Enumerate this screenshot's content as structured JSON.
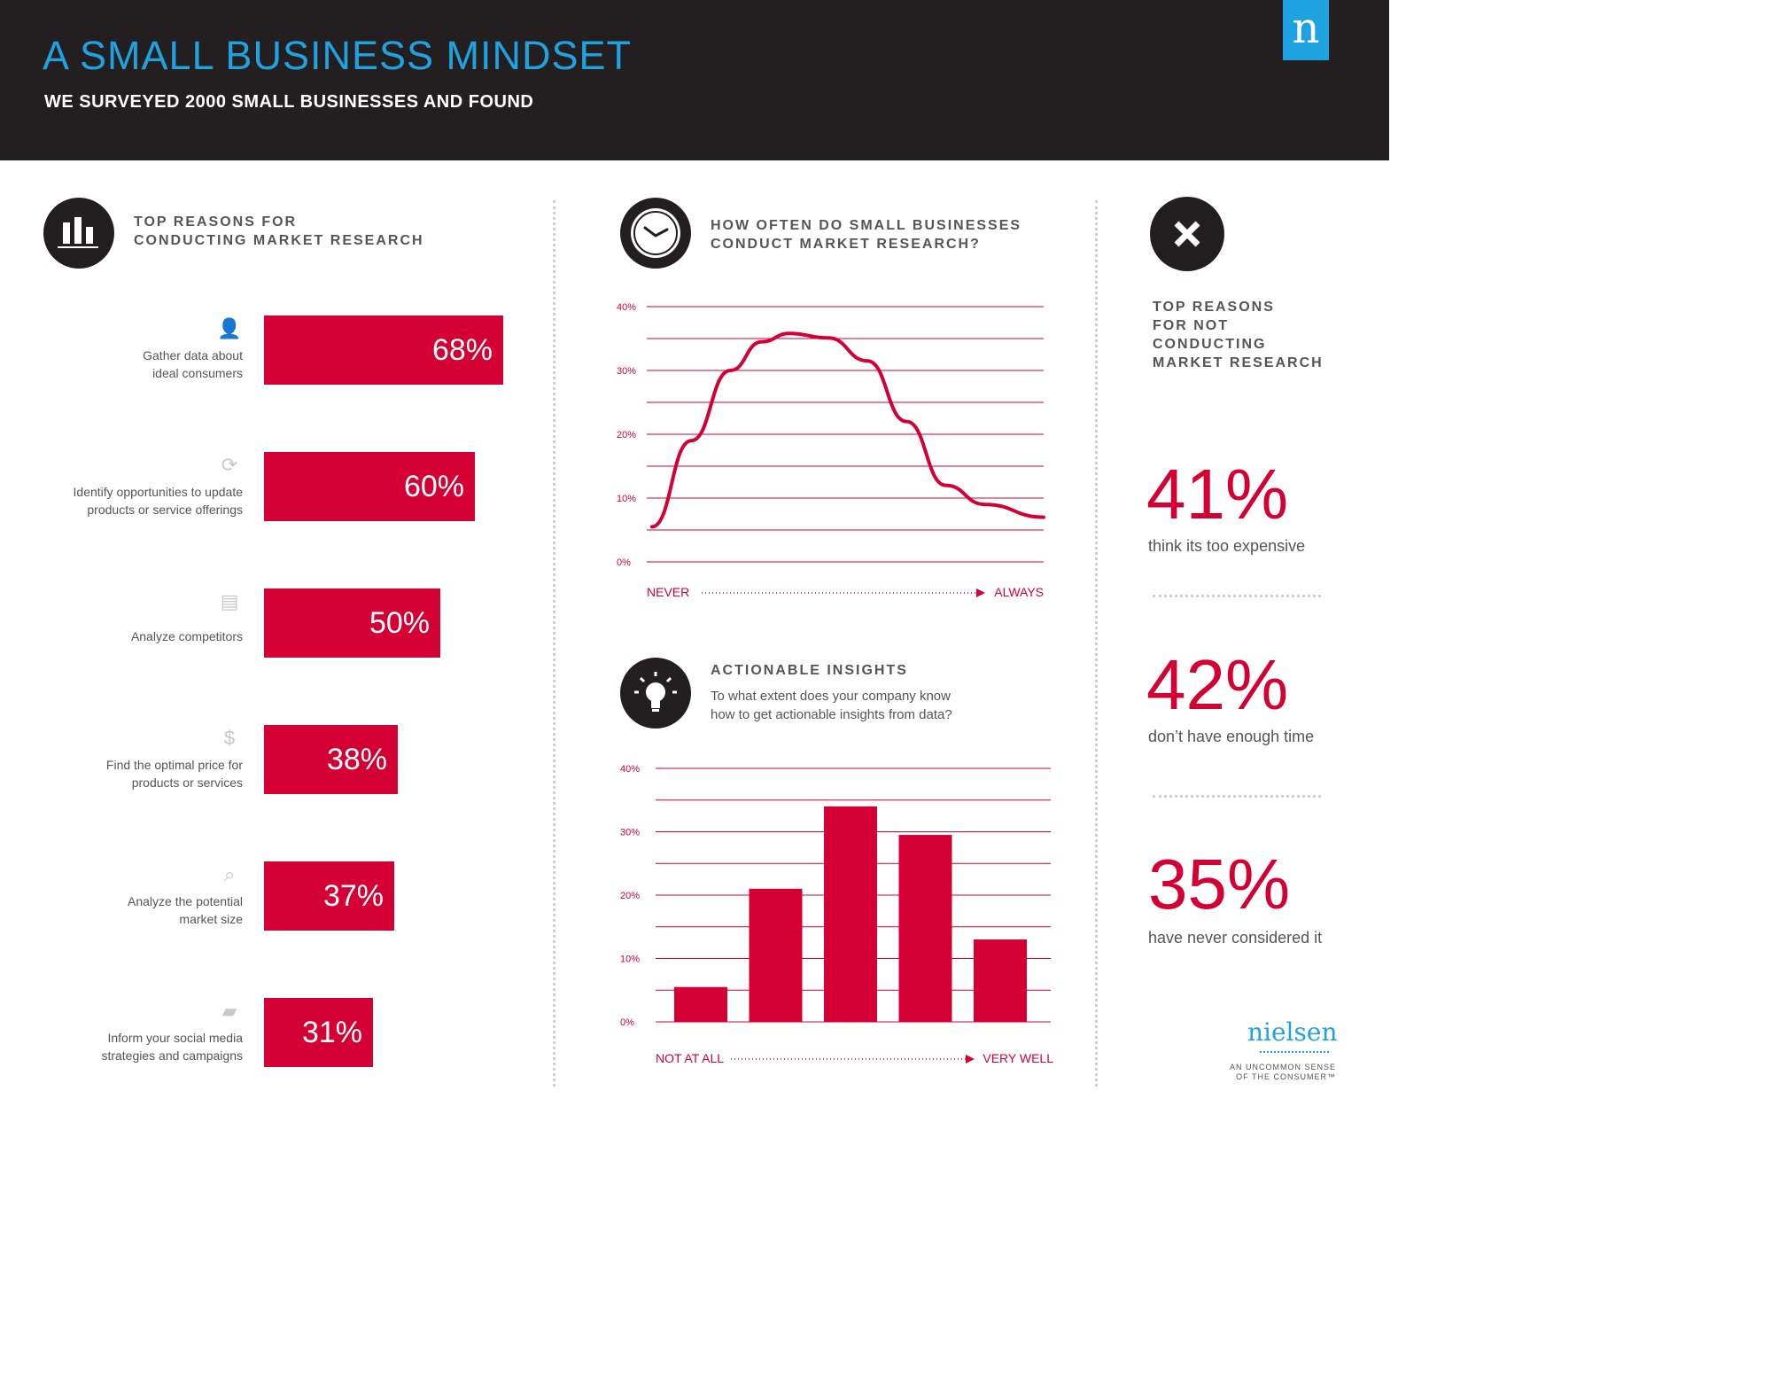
{
  "header": {
    "title": "A SMALL BUSINESS MINDSET",
    "subtitle": "WE SURVEYED 2000 SMALL BUSINESSES AND FOUND",
    "logo": "n"
  },
  "left": {
    "heading_line1": "TOP REASONS FOR",
    "heading_line2": "CONDUCTING MARKET RESEARCH",
    "icon": "bar-chart-icon",
    "items": [
      {
        "label1": "Gather data about",
        "label2": "ideal consumers",
        "value": "68%",
        "icon": "person-icon"
      },
      {
        "label1": "Identify opportunities to update",
        "label2": "products or service offerings",
        "value": "60%",
        "icon": "refresh-icon"
      },
      {
        "label1": "Analyze competitors",
        "label2": "",
        "value": "50%",
        "icon": "storefront-icon"
      },
      {
        "label1": "Find the optimal price for",
        "label2": "products or services",
        "value": "38%",
        "icon": "dollar-icon"
      },
      {
        "label1": "Analyze the potential",
        "label2": "market size",
        "value": "37%",
        "icon": "magnifier-icon"
      },
      {
        "label1": "Inform your social media",
        "label2": "strategies and campaigns",
        "value": "31%",
        "icon": "chat-icon"
      }
    ]
  },
  "middle": {
    "chart1_heading_line1": "HOW OFTEN DO SMALL BUSINESSES",
    "chart1_heading_line2": "CONDUCT MARKET RESEARCH?",
    "chart1_icon": "clock-icon",
    "chart2_heading": "ACTIONABLE INSIGHTS",
    "chart2_question_line1": "To what extent does your company know",
    "chart2_question_line2": "how to get actionable insights from data?",
    "chart2_icon": "lightbulb-icon"
  },
  "right": {
    "icon": "x-icon",
    "heading": [
      "TOP REASONS",
      "FOR NOT",
      "CONDUCTING",
      "MARKET RESEARCH"
    ],
    "stats": [
      {
        "value": "41%",
        "desc": "think its too expensive"
      },
      {
        "value": "42%",
        "desc": "don’t have enough time"
      },
      {
        "value": "35%",
        "desc": "have never considered it"
      }
    ]
  },
  "footer": {
    "brand": "nielsen",
    "tagline1": "AN UNCOMMON SENSE",
    "tagline2": "OF THE CONSUMER™"
  },
  "colors": {
    "accent": "#d40033",
    "header_bg": "#231f20",
    "title_blue": "#1fa3e0"
  },
  "chart_data": [
    {
      "type": "bar",
      "orientation": "horizontal",
      "title": "TOP REASONS FOR CONDUCTING MARKET RESEARCH",
      "categories": [
        "Gather data about ideal consumers",
        "Identify opportunities to update products or service offerings",
        "Analyze competitors",
        "Find the optimal price for products or services",
        "Analyze the potential market size",
        "Inform your social media strategies and campaigns"
      ],
      "values": [
        68,
        60,
        50,
        38,
        37,
        31
      ]
    },
    {
      "type": "line",
      "title": "HOW OFTEN DO SMALL BUSINESSES CONDUCT MARKET RESEARCH?",
      "xlabel_start": "NEVER",
      "xlabel_end": "ALWAYS",
      "yticks": [
        "40%",
        "30%",
        "20%",
        "10%",
        "0%"
      ],
      "ylim": [
        0,
        40
      ],
      "x": [
        0,
        0.1,
        0.2,
        0.28,
        0.35,
        0.45,
        0.55,
        0.65,
        0.75,
        0.85,
        1.0
      ],
      "y": [
        5.5,
        19,
        30,
        34.5,
        35.8,
        35.1,
        31.5,
        22,
        12,
        9,
        7
      ]
    },
    {
      "type": "bar",
      "title": "ACTIONABLE INSIGHTS",
      "xlabel_start": "NOT AT ALL",
      "xlabel_end": "VERY WELL",
      "yticks": [
        "40%",
        "30%",
        "20%",
        "10%",
        "0%"
      ],
      "ylim": [
        0,
        40
      ],
      "values": [
        5.5,
        21,
        34,
        29.5,
        13
      ]
    }
  ]
}
